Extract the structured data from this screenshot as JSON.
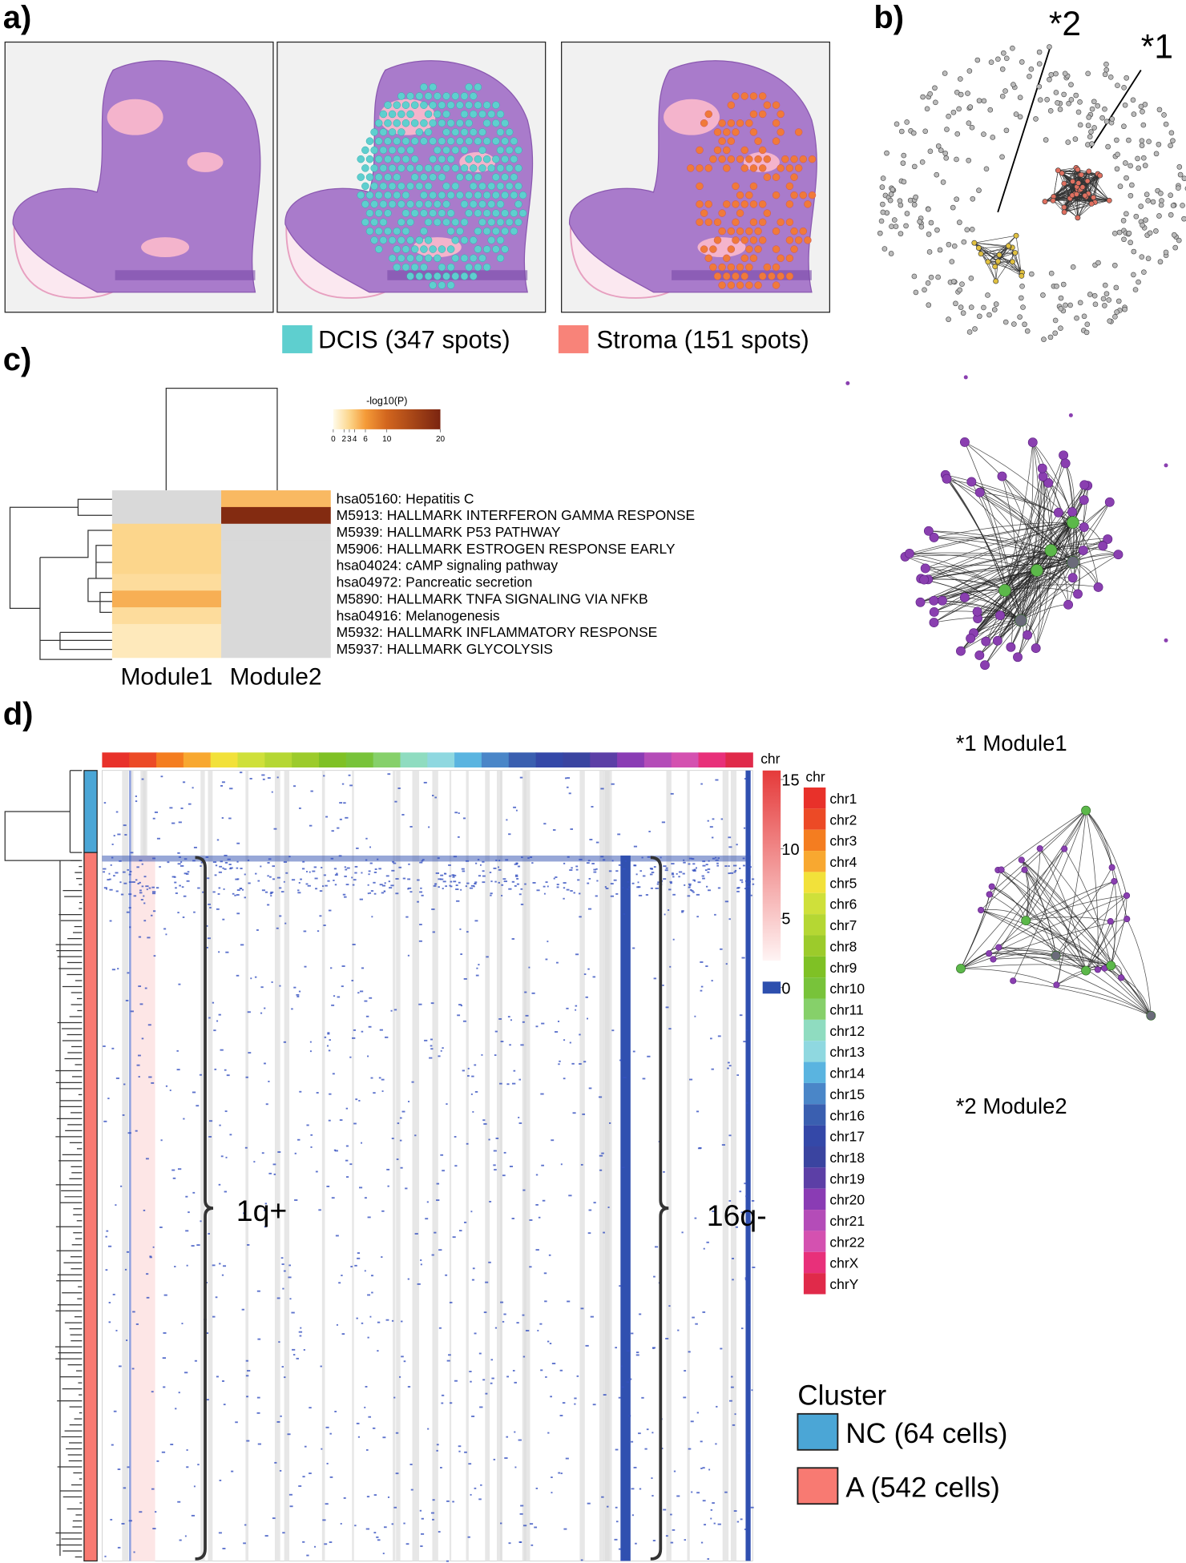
{
  "panels": {
    "a": {
      "label": "a)",
      "legend": [
        {
          "name": "DCIS (347 spots)",
          "color": "#5ecfcf"
        },
        {
          "name": "Stroma (151 spots)",
          "color": "#f88379"
        }
      ]
    },
    "b": {
      "label": "b)",
      "annotations": [
        "*2",
        "*1"
      ],
      "networks": [
        {
          "label": "*1 Module1"
        },
        {
          "label": "*2 Module2"
        }
      ]
    },
    "c": {
      "label": "c)",
      "heatmap": {
        "type": "heatmap",
        "columns": [
          "Module1",
          "Module2"
        ],
        "rows": [
          "hsa05160: Hepatitis C",
          "M5913: HALLMARK INTERFERON GAMMA RESPONSE",
          "M5939: HALLMARK P53 PATHWAY",
          "M5906: HALLMARK ESTROGEN RESPONSE EARLY",
          "hsa04024: cAMP signaling pathway",
          "hsa04972: Pancreatic secretion",
          "M5890: HALLMARK TNFA SIGNALING VIA NFKB",
          "hsa04916: Melanogenesis",
          "M5932: HALLMARK INFLAMMATORY RESPONSE",
          "M5937: HALLMARK GLYCOLYSIS"
        ],
        "values": [
          [
            null,
            4.5
          ],
          [
            null,
            19
          ],
          [
            3,
            null
          ],
          [
            3,
            null
          ],
          [
            3,
            null
          ],
          [
            2.5,
            null
          ],
          [
            5,
            null
          ],
          [
            2.5,
            null
          ],
          [
            1.5,
            null
          ],
          [
            1.5,
            null
          ]
        ],
        "missing_color": "#d9d9d9",
        "colorbar_title": "-log10(P)",
        "colorbar_lim": [
          0,
          20
        ],
        "colorbar_ticks": [
          0,
          2,
          3,
          4,
          6,
          10,
          20
        ],
        "colorbar_stops": [
          {
            "value": 0,
            "color": "#fffbea"
          },
          {
            "value": 3,
            "color": "#fcd68c"
          },
          {
            "value": 6,
            "color": "#f59b38"
          },
          {
            "value": 10,
            "color": "#d2661e"
          },
          {
            "value": 20,
            "color": "#7a2410"
          }
        ]
      }
    },
    "d": {
      "label": "d)",
      "annotations": [
        "1q+",
        "16q-"
      ],
      "colorbar": {
        "title": "chr",
        "lim": [
          0,
          15
        ],
        "ticks": [
          15,
          10,
          5,
          0
        ],
        "high_color": "#e53a3a",
        "low_color": "#fff4f4",
        "zero_color": "#2d4fae"
      },
      "chromosome_title": "chr",
      "chromosomes": [
        {
          "name": "chr1",
          "color": "#e8312a"
        },
        {
          "name": "chr2",
          "color": "#ec4a26"
        },
        {
          "name": "chr3",
          "color": "#f47d20"
        },
        {
          "name": "chr4",
          "color": "#f8a830"
        },
        {
          "name": "chr5",
          "color": "#f2e13a"
        },
        {
          "name": "chr6",
          "color": "#cfe03a"
        },
        {
          "name": "chr7",
          "color": "#b5d733"
        },
        {
          "name": "chr8",
          "color": "#9ccb2b"
        },
        {
          "name": "chr9",
          "color": "#7fc125"
        },
        {
          "name": "chr10",
          "color": "#78c33a"
        },
        {
          "name": "chr11",
          "color": "#86d06a"
        },
        {
          "name": "chr12",
          "color": "#8fdcc0"
        },
        {
          "name": "chr13",
          "color": "#8fd8e0"
        },
        {
          "name": "chr14",
          "color": "#5ab4e0"
        },
        {
          "name": "chr15",
          "color": "#4a86c8"
        },
        {
          "name": "chr16",
          "color": "#3a5fb0"
        },
        {
          "name": "chr17",
          "color": "#3448a8"
        },
        {
          "name": "chr18",
          "color": "#3a44a0"
        },
        {
          "name": "chr19",
          "color": "#5c3fa6"
        },
        {
          "name": "chr20",
          "color": "#8a3cb4"
        },
        {
          "name": "chr21",
          "color": "#b44cb8"
        },
        {
          "name": "chr22",
          "color": "#d451b0"
        },
        {
          "name": "chrX",
          "color": "#e8307a"
        },
        {
          "name": "chrY",
          "color": "#e02a4a"
        }
      ],
      "cluster_legend": {
        "title": "Cluster",
        "items": [
          {
            "name": "NC (64 cells)",
            "color": "#4ba6d6"
          },
          {
            "name": "A (542 cells)",
            "color": "#f87a72"
          }
        ]
      }
    }
  }
}
